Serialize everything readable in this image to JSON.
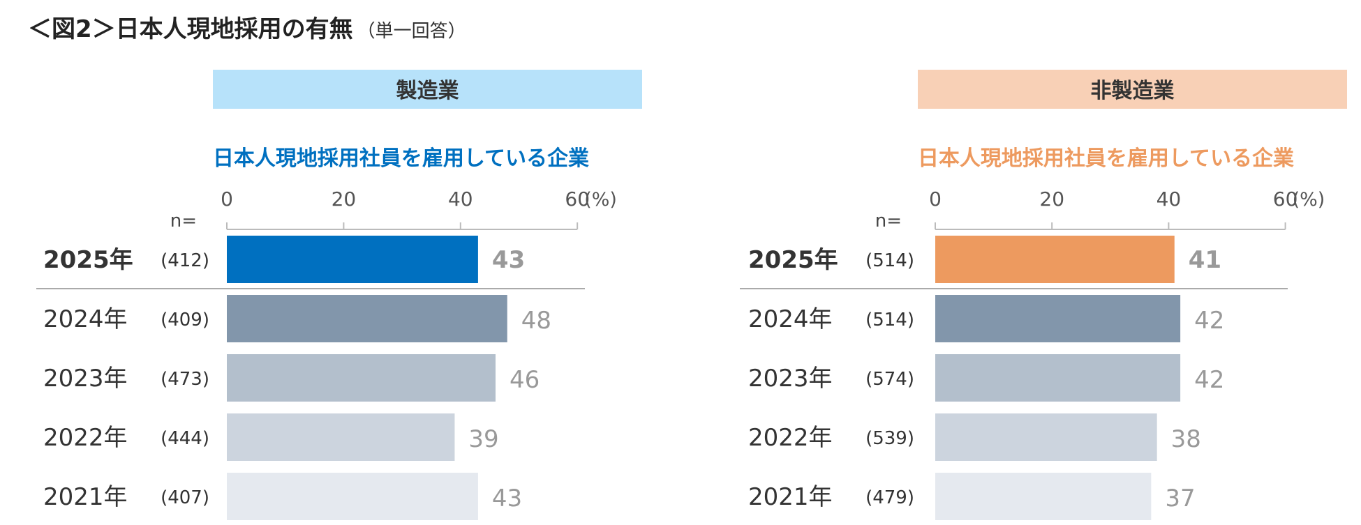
{
  "title": {
    "main": "＜図2＞日本人現地採用の有無",
    "sub": "（単一回答）"
  },
  "axis": {
    "ticks": [
      0,
      20,
      40,
      60
    ],
    "unit": "(%)",
    "n_label": "n="
  },
  "chart_data": [
    {
      "type": "bar",
      "orientation": "horizontal",
      "panel": "製造業",
      "title": "日本人現地採用社員を雇用している企業",
      "xlabel": "(%)",
      "xlim": [
        0,
        60
      ],
      "categories": [
        "2025年",
        "2024年",
        "2023年",
        "2022年",
        "2021年"
      ],
      "n": [
        "(412)",
        "(409)",
        "(473)",
        "(444)",
        "(407)"
      ],
      "values": [
        43,
        48,
        46,
        39,
        43
      ],
      "colors": {
        "banner": "#b7e2fa",
        "accent": "#0070c0"
      }
    },
    {
      "type": "bar",
      "orientation": "horizontal",
      "panel": "非製造業",
      "title": "日本人現地採用社員を雇用している企業",
      "xlabel": "(%)",
      "xlim": [
        0,
        60
      ],
      "categories": [
        "2025年",
        "2024年",
        "2023年",
        "2022年",
        "2021年"
      ],
      "n": [
        "(514)",
        "(514)",
        "(574)",
        "(539)",
        "(479)"
      ],
      "values": [
        41,
        42,
        42,
        38,
        37
      ],
      "colors": {
        "banner": "#f8d0b6",
        "accent": "#ed9a5f"
      }
    }
  ],
  "colors": {
    "history": [
      "#8296ab",
      "#b3bfcc",
      "#ccd4de",
      "#e5e9ef"
    ],
    "value_gray": "#999999",
    "axis": "#bbbbbb"
  }
}
